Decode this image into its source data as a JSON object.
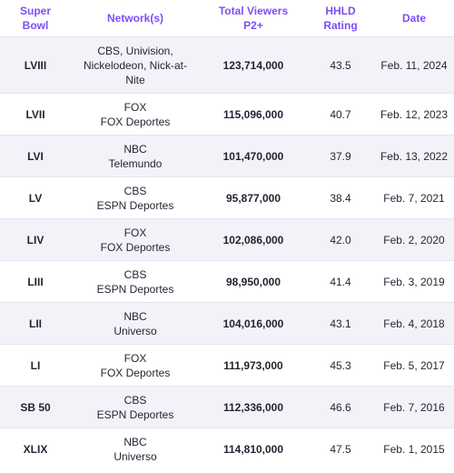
{
  "headers": {
    "super_bowl": [
      "Super",
      "Bowl"
    ],
    "networks": "Network(s)",
    "total_viewers": [
      "Total Viewers",
      "P2+"
    ],
    "hhld_rating": [
      "HHLD",
      "Rating"
    ],
    "date": "Date"
  },
  "rows": [
    {
      "super_bowl": "LVIII",
      "networks": [
        "CBS, Univision,",
        "Nickelodeon, Nick-at-",
        "Nite"
      ],
      "viewers": "123,714,000",
      "rating": "43.5",
      "date": "Feb. 11, 2024"
    },
    {
      "super_bowl": "LVII",
      "networks": [
        "FOX",
        "FOX Deportes"
      ],
      "viewers": "115,096,000",
      "rating": "40.7",
      "date": "Feb. 12, 2023"
    },
    {
      "super_bowl": "LVI",
      "networks": [
        "NBC",
        "Telemundo"
      ],
      "viewers": "101,470,000",
      "rating": "37.9",
      "date": "Feb. 13, 2022"
    },
    {
      "super_bowl": "LV",
      "networks": [
        "CBS",
        "ESPN Deportes"
      ],
      "viewers": "95,877,000",
      "rating": "38.4",
      "date": "Feb. 7, 2021"
    },
    {
      "super_bowl": "LIV",
      "networks": [
        "FOX",
        "FOX Deportes"
      ],
      "viewers": "102,086,000",
      "rating": "42.0",
      "date": "Feb. 2, 2020"
    },
    {
      "super_bowl": "LIII",
      "networks": [
        "CBS",
        "ESPN Deportes"
      ],
      "viewers": "98,950,000",
      "rating": "41.4",
      "date": "Feb. 3, 2019"
    },
    {
      "super_bowl": "LII",
      "networks": [
        "NBC",
        "Universo"
      ],
      "viewers": "104,016,000",
      "rating": "43.1",
      "date": "Feb. 4, 2018"
    },
    {
      "super_bowl": "LI",
      "networks": [
        "FOX",
        "FOX Deportes"
      ],
      "viewers": "111,973,000",
      "rating": "45.3",
      "date": "Feb. 5, 2017"
    },
    {
      "super_bowl": "SB 50",
      "networks": [
        "CBS",
        "ESPN Deportes"
      ],
      "viewers": "112,336,000",
      "rating": "46.6",
      "date": "Feb. 7, 2016"
    },
    {
      "super_bowl": "XLIX",
      "networks": [
        "NBC",
        "Universo"
      ],
      "viewers": "114,810,000",
      "rating": "47.5",
      "date": "Feb. 1, 2015"
    }
  ],
  "colors": {
    "header_text": "#7b4ff6",
    "stripe": "#f3f2f8",
    "body_text": "#1f2430"
  }
}
